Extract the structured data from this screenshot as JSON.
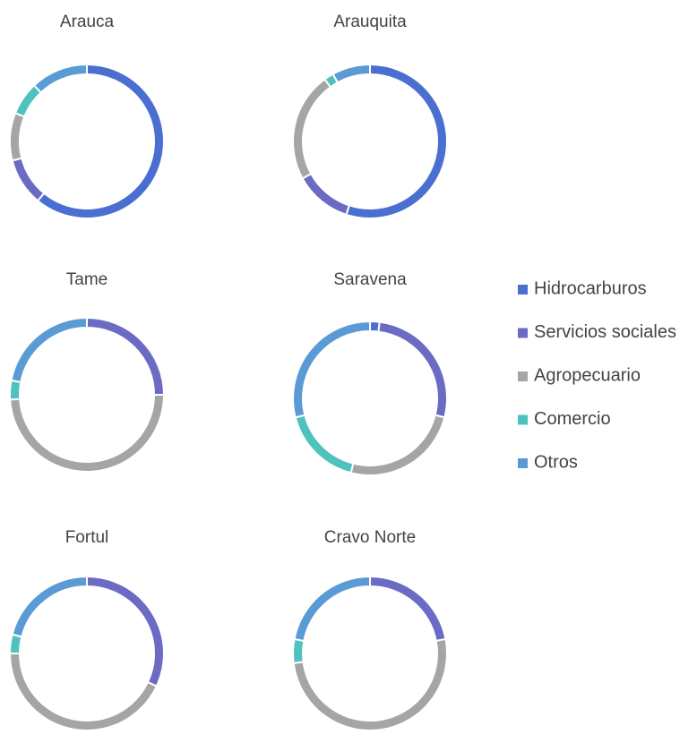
{
  "chart_data": [
    {
      "type": "pie",
      "donut": true,
      "title": "Arauca",
      "categories": [
        "Hidrocarburos",
        "Servicios sociales",
        "Agropecuario",
        "Comercio",
        "Otros"
      ],
      "values": [
        61,
        10,
        10,
        7,
        12
      ],
      "colors": [
        "#4a6fd0",
        "#6b6bc4",
        "#a5a5a5",
        "#4fc1bf",
        "#5a9bd5"
      ],
      "legend": "right"
    },
    {
      "type": "pie",
      "donut": true,
      "title": "Arauquita",
      "categories": [
        "Hidrocarburos",
        "Servicios sociales",
        "Agropecuario",
        "Comercio",
        "Otros"
      ],
      "values": [
        55,
        12,
        23,
        2,
        8
      ],
      "colors": [
        "#4a6fd0",
        "#6b6bc4",
        "#a5a5a5",
        "#4fc1bf",
        "#5a9bd5"
      ]
    },
    {
      "type": "pie",
      "donut": true,
      "title": "Tame",
      "categories": [
        "Hidrocarburos",
        "Servicios sociales",
        "Agropecuario",
        "Comercio",
        "Otros"
      ],
      "values": [
        0,
        25,
        49,
        4,
        22
      ],
      "colors": [
        "#4a6fd0",
        "#6b6bc4",
        "#a5a5a5",
        "#4fc1bf",
        "#5a9bd5"
      ]
    },
    {
      "type": "pie",
      "donut": true,
      "title": "Saravena",
      "categories": [
        "Hidrocarburos",
        "Servicios sociales",
        "Agropecuario",
        "Comercio",
        "Otros"
      ],
      "values": [
        2,
        27,
        25,
        17,
        29
      ],
      "colors": [
        "#4a6fd0",
        "#6b6bc4",
        "#a5a5a5",
        "#4fc1bf",
        "#5a9bd5"
      ]
    },
    {
      "type": "pie",
      "donut": true,
      "title": "Fortul",
      "categories": [
        "Hidrocarburos",
        "Servicios sociales",
        "Agropecuario",
        "Comercio",
        "Otros"
      ],
      "values": [
        0,
        32,
        43,
        4,
        21
      ],
      "colors": [
        "#4a6fd0",
        "#6b6bc4",
        "#a5a5a5",
        "#4fc1bf",
        "#5a9bd5"
      ]
    },
    {
      "type": "pie",
      "donut": true,
      "title": "Cravo Norte",
      "categories": [
        "Hidrocarburos",
        "Servicios sociales",
        "Agropecuario",
        "Comercio",
        "Otros"
      ],
      "values": [
        0,
        22,
        51,
        5,
        22
      ],
      "colors": [
        "#4a6fd0",
        "#6b6bc4",
        "#a5a5a5",
        "#4fc1bf",
        "#5a9bd5"
      ]
    }
  ]
}
